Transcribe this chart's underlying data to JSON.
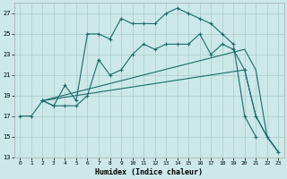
{
  "xlabel": "Humidex (Indice chaleur)",
  "bg_color": "#cce8e8",
  "grid_color": "#aacccc",
  "line_color": "#1a6b6b",
  "xlim": [
    -0.5,
    23.5
  ],
  "ylim": [
    13,
    28
  ],
  "yticks": [
    13,
    15,
    17,
    19,
    21,
    23,
    25,
    27
  ],
  "xticks": [
    0,
    1,
    2,
    3,
    4,
    5,
    6,
    7,
    8,
    9,
    10,
    11,
    12,
    13,
    14,
    15,
    16,
    17,
    18,
    19,
    20,
    21,
    22,
    23
  ],
  "line1_x": [
    0,
    1,
    2,
    3,
    4,
    5,
    6,
    7,
    8,
    9,
    10,
    11,
    12,
    13,
    14,
    15,
    16,
    17,
    18,
    19,
    20,
    21
  ],
  "line1_y": [
    17,
    17,
    18.5,
    18,
    20,
    18.5,
    25,
    25,
    24.5,
    26.5,
    26,
    26,
    26,
    27,
    27.5,
    27,
    26.5,
    26,
    25,
    24,
    17,
    15
  ],
  "line2_x": [
    2,
    3,
    4,
    5,
    6,
    7,
    8,
    9,
    10,
    11,
    12,
    13,
    14,
    15,
    16,
    17,
    18,
    19,
    20,
    21,
    22,
    23
  ],
  "line2_y": [
    18.5,
    18,
    18,
    18,
    19,
    22.5,
    21,
    21.5,
    23,
    24,
    23.5,
    24,
    24,
    24,
    25,
    23,
    24,
    23.5,
    21.5,
    17,
    15,
    13.5
  ],
  "line3_x": [
    2,
    20,
    21,
    22,
    23
  ],
  "line3_y": [
    18.5,
    23.5,
    21.5,
    15,
    13.5
  ],
  "line4_x": [
    2,
    20,
    21,
    22,
    23
  ],
  "line4_y": [
    18.5,
    21.5,
    17,
    15,
    13.5
  ]
}
